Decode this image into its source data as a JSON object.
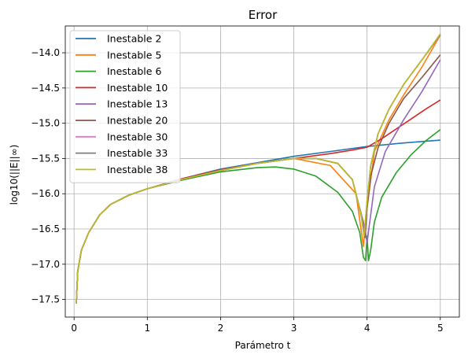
{
  "chart_data": {
    "type": "line",
    "title": "Error",
    "xlabel": "Parámetro t",
    "ylabel": "log10(||E||∞)",
    "xlim": [
      -0.12,
      5.26
    ],
    "ylim": [
      -17.75,
      -13.62
    ],
    "xticks": [
      0,
      1,
      2,
      3,
      4,
      5
    ],
    "yticks": [
      -17.5,
      -17.0,
      -16.5,
      -16.0,
      -15.5,
      -15.0,
      -14.5,
      -14.0
    ],
    "xtick_labels": [
      "0",
      "1",
      "2",
      "3",
      "4",
      "5"
    ],
    "ytick_labels": [
      "−17.5",
      "−17.0",
      "−16.5",
      "−16.0",
      "−15.5",
      "−15.0",
      "−14.5",
      "−14.0"
    ],
    "grid": true,
    "legend_position": "upper-left",
    "series": [
      {
        "name": "Inestable 2",
        "color": "#1f77b4",
        "x": [
          0.03,
          0.05,
          0.1,
          0.2,
          0.35,
          0.5,
          0.75,
          1.0,
          1.5,
          2.0,
          2.5,
          3.0,
          3.5,
          4.0,
          4.5,
          5.0
        ],
        "y": [
          -17.56,
          -17.1,
          -16.8,
          -16.55,
          -16.3,
          -16.15,
          -16.02,
          -15.93,
          -15.78,
          -15.65,
          -15.56,
          -15.47,
          -15.4,
          -15.33,
          -15.28,
          -15.24
        ]
      },
      {
        "name": "Inestable 5",
        "color": "#ff7f0e",
        "x": [
          0.03,
          0.05,
          0.1,
          0.2,
          0.35,
          0.5,
          0.75,
          1.0,
          1.5,
          2.0,
          2.5,
          3.0,
          3.5,
          3.85,
          3.95,
          4.0,
          4.1,
          4.3,
          4.5,
          4.75,
          5.0
        ],
        "y": [
          -17.56,
          -17.1,
          -16.8,
          -16.55,
          -16.3,
          -16.15,
          -16.02,
          -15.93,
          -15.79,
          -15.67,
          -15.57,
          -15.5,
          -15.6,
          -16.0,
          -16.75,
          -16.2,
          -15.4,
          -14.95,
          -14.6,
          -14.2,
          -13.75
        ]
      },
      {
        "name": "Inestable 6",
        "color": "#2ca02c",
        "x": [
          0.03,
          0.05,
          0.1,
          0.2,
          0.35,
          0.5,
          0.75,
          1.0,
          1.5,
          2.0,
          2.5,
          2.75,
          3.0,
          3.3,
          3.6,
          3.8,
          3.9,
          3.95,
          3.98,
          4.0,
          4.02,
          4.05,
          4.1,
          4.2,
          4.4,
          4.6,
          4.8,
          5.0
        ],
        "y": [
          -17.56,
          -17.1,
          -16.8,
          -16.55,
          -16.3,
          -16.15,
          -16.02,
          -15.93,
          -15.8,
          -15.69,
          -15.63,
          -15.62,
          -15.65,
          -15.75,
          -15.98,
          -16.25,
          -16.55,
          -16.9,
          -16.95,
          -16.6,
          -16.95,
          -16.8,
          -16.4,
          -16.05,
          -15.7,
          -15.45,
          -15.25,
          -15.09
        ]
      },
      {
        "name": "Inestable 10",
        "color": "#d62728",
        "x": [
          0.03,
          0.05,
          0.1,
          0.2,
          0.35,
          0.5,
          0.75,
          1.0,
          1.5,
          2.0,
          2.5,
          3.0,
          3.5,
          3.8,
          4.0,
          4.2,
          4.4,
          4.6,
          4.8,
          5.0
        ],
        "y": [
          -17.56,
          -17.1,
          -16.8,
          -16.55,
          -16.3,
          -16.15,
          -16.02,
          -15.93,
          -15.78,
          -15.66,
          -15.57,
          -15.5,
          -15.43,
          -15.38,
          -15.34,
          -15.22,
          -15.08,
          -14.94,
          -14.8,
          -14.67
        ]
      },
      {
        "name": "Inestable 13",
        "color": "#9467bd",
        "x": [
          0.03,
          0.05,
          0.1,
          0.2,
          0.35,
          0.5,
          0.75,
          1.0,
          1.5,
          2.0,
          2.5,
          3.0,
          3.3,
          3.6,
          3.8,
          3.95,
          4.0,
          4.03,
          4.1,
          4.25,
          4.5,
          4.75,
          5.0
        ],
        "y": [
          -17.56,
          -17.1,
          -16.8,
          -16.55,
          -16.3,
          -16.15,
          -16.02,
          -15.93,
          -15.79,
          -15.67,
          -15.57,
          -15.5,
          -15.5,
          -15.57,
          -15.8,
          -16.4,
          -16.7,
          -16.45,
          -15.9,
          -15.4,
          -14.95,
          -14.55,
          -14.1
        ]
      },
      {
        "name": "Inestable 20",
        "color": "#8c564b",
        "x": [
          0.03,
          0.05,
          0.1,
          0.2,
          0.35,
          0.5,
          0.75,
          1.0,
          1.5,
          2.0,
          2.5,
          3.0,
          3.3,
          3.6,
          3.8,
          3.93,
          3.97,
          4.0,
          4.05,
          4.15,
          4.3,
          4.5,
          4.75,
          5.0
        ],
        "y": [
          -17.56,
          -17.1,
          -16.8,
          -16.55,
          -16.3,
          -16.15,
          -16.02,
          -15.93,
          -15.79,
          -15.67,
          -15.57,
          -15.5,
          -15.5,
          -15.57,
          -15.8,
          -16.35,
          -16.62,
          -16.2,
          -15.75,
          -15.35,
          -15.0,
          -14.65,
          -14.35,
          -14.03
        ]
      },
      {
        "name": "Inestable 30",
        "color": "#e377c2",
        "x": [
          0.03,
          0.05,
          0.1,
          0.2,
          0.35,
          0.5,
          0.75,
          1.0,
          1.5,
          2.0,
          2.5,
          3.0,
          3.3,
          3.6,
          3.8,
          3.92,
          3.96,
          4.0,
          4.05,
          4.15,
          4.3,
          4.5,
          4.75,
          5.0
        ],
        "y": [
          -17.56,
          -17.1,
          -16.8,
          -16.55,
          -16.3,
          -16.15,
          -16.02,
          -15.93,
          -15.79,
          -15.67,
          -15.57,
          -15.5,
          -15.5,
          -15.57,
          -15.8,
          -16.3,
          -16.6,
          -16.1,
          -15.6,
          -15.15,
          -14.8,
          -14.45,
          -14.1,
          -13.75
        ]
      },
      {
        "name": "Inestable 33",
        "color": "#7f7f7f",
        "x": [
          0.03,
          0.05,
          0.1,
          0.2,
          0.35,
          0.5,
          0.75,
          1.0,
          1.5,
          2.0,
          2.5,
          3.0,
          3.3,
          3.6,
          3.8,
          3.92,
          3.96,
          4.0,
          4.05,
          4.15,
          4.3,
          4.5,
          4.75,
          5.0
        ],
        "y": [
          -17.56,
          -17.1,
          -16.8,
          -16.55,
          -16.3,
          -16.15,
          -16.02,
          -15.93,
          -15.79,
          -15.67,
          -15.57,
          -15.5,
          -15.5,
          -15.57,
          -15.8,
          -16.3,
          -16.6,
          -16.1,
          -15.6,
          -15.15,
          -14.8,
          -14.45,
          -14.1,
          -13.74
        ]
      },
      {
        "name": "Inestable 38",
        "color": "#bcbd22",
        "x": [
          0.03,
          0.05,
          0.1,
          0.2,
          0.35,
          0.5,
          0.75,
          1.0,
          1.5,
          2.0,
          2.5,
          3.0,
          3.3,
          3.6,
          3.8,
          3.92,
          3.96,
          4.0,
          4.05,
          4.15,
          4.3,
          4.5,
          4.75,
          5.0
        ],
        "y": [
          -17.56,
          -17.1,
          -16.8,
          -16.55,
          -16.3,
          -16.15,
          -16.02,
          -15.93,
          -15.79,
          -15.67,
          -15.57,
          -15.5,
          -15.5,
          -15.57,
          -15.8,
          -16.3,
          -16.6,
          -16.1,
          -15.6,
          -15.15,
          -14.8,
          -14.45,
          -14.1,
          -13.73
        ]
      }
    ]
  }
}
